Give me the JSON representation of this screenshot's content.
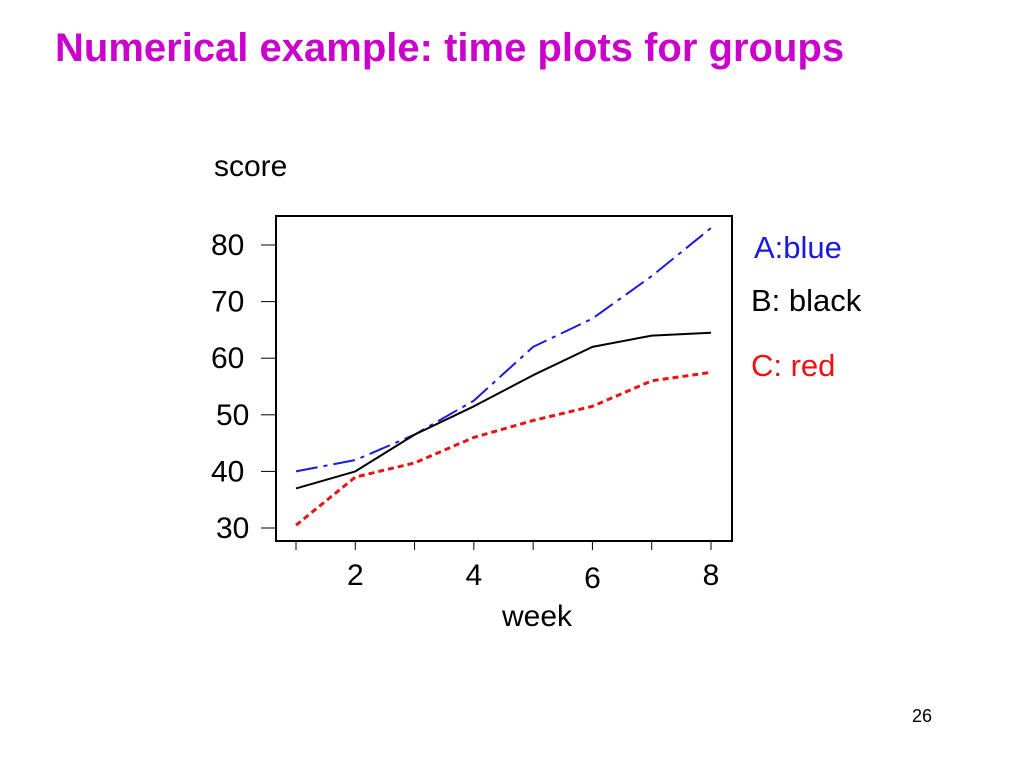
{
  "slide": {
    "title": "Numerical example: time plots for groups",
    "page_number": "26"
  },
  "colors": {
    "title": "#cc00cc",
    "A": "#1a1adf",
    "B": "#000000",
    "C": "#ee1111"
  },
  "chart_data": {
    "type": "line",
    "ylabel": "score",
    "xlabel": "week",
    "xlim": [
      1,
      8
    ],
    "ylim": [
      30,
      80
    ],
    "x_tick_labels": [
      "2",
      "4",
      "6",
      "8"
    ],
    "y_tick_labels": [
      "80",
      "70",
      "60",
      "50",
      "40",
      "30"
    ],
    "x": [
      1,
      2,
      3,
      4,
      5,
      6,
      7,
      8
    ],
    "series": [
      {
        "key": "A",
        "name": "A:blue",
        "values": [
          40,
          42,
          46.5,
          52.5,
          62,
          67,
          74.5,
          83
        ],
        "style": "dash"
      },
      {
        "key": "B",
        "name": "B: black",
        "values": [
          37,
          40,
          46.5,
          51.5,
          57,
          62,
          64,
          64.5
        ],
        "style": "solid"
      },
      {
        "key": "C",
        "name": "C: red",
        "values": [
          30.5,
          39,
          41.5,
          46,
          49,
          51.5,
          56,
          57.5
        ],
        "style": "dot"
      }
    ]
  }
}
